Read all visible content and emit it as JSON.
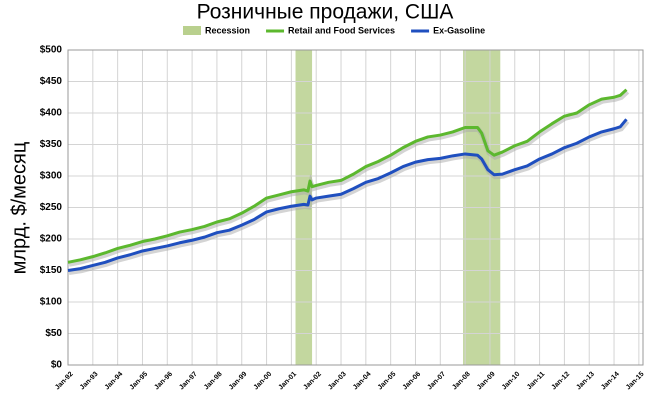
{
  "chart_data": {
    "type": "line",
    "title": "Розничные продажи, США",
    "y_label": "млрд. $/месяц",
    "recession": {
      "name": "Recession",
      "color": "#b9d08e",
      "periods": [
        {
          "start": "Mar-01",
          "end": "Nov-01"
        },
        {
          "start": "Dec-07",
          "end": "Jun-09"
        }
      ]
    },
    "x": [
      "Jan-92",
      "Jul-92",
      "Jan-93",
      "Jul-93",
      "Jan-94",
      "Jul-94",
      "Jan-95",
      "Jul-95",
      "Jan-96",
      "Jul-96",
      "Jan-97",
      "Jul-97",
      "Jan-98",
      "Jul-98",
      "Jan-99",
      "Jul-99",
      "Jan-00",
      "Jul-00",
      "Jan-01",
      "Jul-01",
      "Sep-01",
      "Oct-01",
      "Nov-01",
      "Jan-02",
      "Jul-02",
      "Jan-03",
      "Jul-03",
      "Jan-04",
      "Jul-04",
      "Jan-05",
      "Jul-05",
      "Jan-06",
      "Jul-06",
      "Jan-07",
      "Jul-07",
      "Jan-08",
      "Jul-08",
      "Sep-08",
      "Dec-08",
      "Mar-09",
      "Jul-09",
      "Jan-10",
      "Jul-10",
      "Jan-11",
      "Jul-11",
      "Jan-12",
      "Jul-12",
      "Jan-13",
      "Jul-13",
      "Jan-14",
      "Apr-14",
      "Jul-14"
    ],
    "series": [
      {
        "name": "Retail and Food Services",
        "color": "#5cb82e",
        "values": [
          163,
          167,
          172,
          178,
          185,
          190,
          196,
          200,
          205,
          211,
          215,
          220,
          227,
          232,
          241,
          252,
          265,
          270,
          275,
          278,
          276,
          292,
          283,
          285,
          290,
          293,
          303,
          315,
          323,
          333,
          345,
          355,
          362,
          365,
          370,
          377,
          377,
          368,
          340,
          333,
          338,
          348,
          355,
          370,
          383,
          395,
          400,
          413,
          422,
          425,
          428,
          437
        ]
      },
      {
        "name": "Ex-Gasoline",
        "color": "#1f4fbf",
        "values": [
          150,
          153,
          158,
          163,
          170,
          175,
          181,
          185,
          189,
          194,
          198,
          203,
          210,
          214,
          222,
          231,
          243,
          248,
          252,
          255,
          254,
          268,
          262,
          265,
          268,
          271,
          280,
          290,
          296,
          305,
          315,
          322,
          326,
          328,
          332,
          335,
          333,
          327,
          310,
          302,
          303,
          310,
          316,
          327,
          335,
          345,
          352,
          362,
          370,
          375,
          378,
          390
        ]
      }
    ],
    "xlim": [
      "Jan-92",
      "Mar-15"
    ],
    "xticks": [
      "Jan-92",
      "Jan-93",
      "Jan-94",
      "Jan-95",
      "Jan-96",
      "Jan-97",
      "Jan-98",
      "Jan-99",
      "Jan-00",
      "Jan-01",
      "Jan-02",
      "Jan-03",
      "Jan-04",
      "Jan-05",
      "Jan-06",
      "Jan-07",
      "Jan-08",
      "Jan-09",
      "Jan-10",
      "Jan-11",
      "Jan-12",
      "Jan-13",
      "Jan-14",
      "Jan-15"
    ],
    "ylim": [
      0,
      500
    ],
    "yticks": [
      {
        "value": 0,
        "label": "$0"
      },
      {
        "value": 50,
        "label": "$50"
      },
      {
        "value": 100,
        "label": "$100"
      },
      {
        "value": 150,
        "label": "$150"
      },
      {
        "value": 200,
        "label": "$200"
      },
      {
        "value": 250,
        "label": "$250"
      },
      {
        "value": 300,
        "label": "$300"
      },
      {
        "value": 350,
        "label": "$350"
      },
      {
        "value": 400,
        "label": "$400"
      },
      {
        "value": 450,
        "label": "$450"
      },
      {
        "value": 500,
        "label": "$500"
      }
    ],
    "grid": true
  }
}
